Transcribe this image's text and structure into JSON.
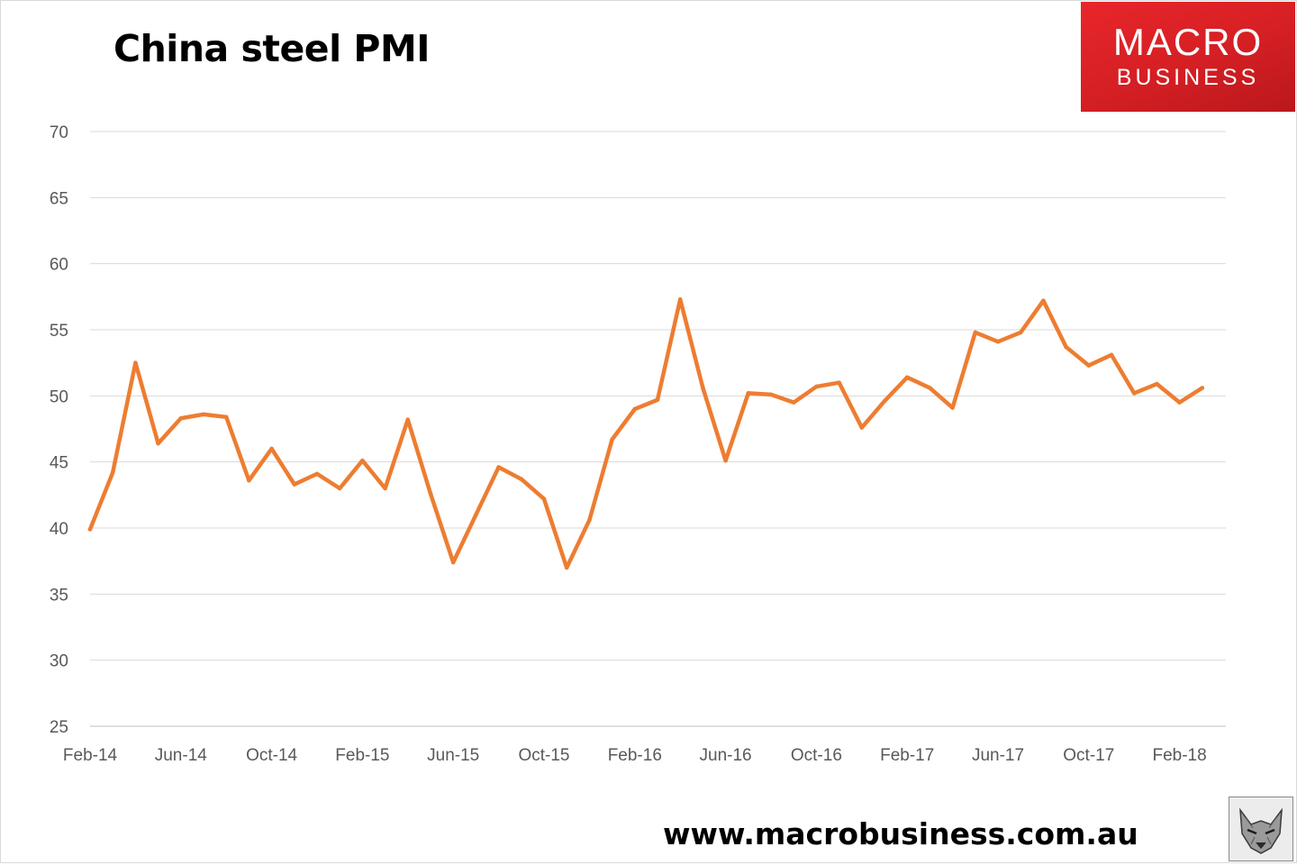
{
  "title": "China steel PMI",
  "brand": {
    "line1": "MACRO",
    "line2": "BUSINESS",
    "color": "#d9232a"
  },
  "footer_url": "www.macrobusiness.com.au",
  "line_color": "#ed7d31",
  "chart_data": {
    "type": "line",
    "title": "China steel PMI",
    "xlabel": "",
    "ylabel": "",
    "ylim": [
      25,
      70
    ],
    "yticks": [
      25,
      30,
      35,
      40,
      45,
      50,
      55,
      60,
      65,
      70
    ],
    "grid": true,
    "legend": false,
    "x": [
      "Feb-14",
      "Mar-14",
      "Apr-14",
      "May-14",
      "Jun-14",
      "Jul-14",
      "Aug-14",
      "Sep-14",
      "Oct-14",
      "Nov-14",
      "Dec-14",
      "Jan-15",
      "Feb-15",
      "Mar-15",
      "Apr-15",
      "May-15",
      "Jun-15",
      "Jul-15",
      "Aug-15",
      "Sep-15",
      "Oct-15",
      "Nov-15",
      "Dec-15",
      "Jan-16",
      "Feb-16",
      "Mar-16",
      "Apr-16",
      "May-16",
      "Jun-16",
      "Jul-16",
      "Aug-16",
      "Sep-16",
      "Oct-16",
      "Nov-16",
      "Dec-16",
      "Jan-17",
      "Feb-17",
      "Mar-17",
      "Apr-17",
      "May-17",
      "Jun-17",
      "Jul-17",
      "Aug-17",
      "Sep-17",
      "Oct-17",
      "Nov-17",
      "Dec-17",
      "Jan-18",
      "Feb-18",
      "Mar-18"
    ],
    "xtick_labels": [
      "Feb-14",
      "Jun-14",
      "Oct-14",
      "Feb-15",
      "Jun-15",
      "Oct-15",
      "Feb-16",
      "Jun-16",
      "Oct-16",
      "Feb-17",
      "Jun-17",
      "Oct-17",
      "Feb-18"
    ],
    "series": [
      {
        "values": [
          39.9,
          44.2,
          52.5,
          46.4,
          48.3,
          48.6,
          48.4,
          43.6,
          46.0,
          43.3,
          44.1,
          43.0,
          45.1,
          43.0,
          48.2,
          42.6,
          37.4,
          41.0,
          44.6,
          43.7,
          42.2,
          37.0,
          40.6,
          46.7,
          49.0,
          49.7,
          57.3,
          50.6,
          45.1,
          50.2,
          50.1,
          49.5,
          50.7,
          51.0,
          47.6,
          49.6,
          51.4,
          50.6,
          49.1,
          54.8,
          54.1,
          54.8,
          57.2,
          53.7,
          52.3,
          53.1,
          50.2,
          50.9,
          49.5,
          50.6
        ]
      }
    ]
  }
}
